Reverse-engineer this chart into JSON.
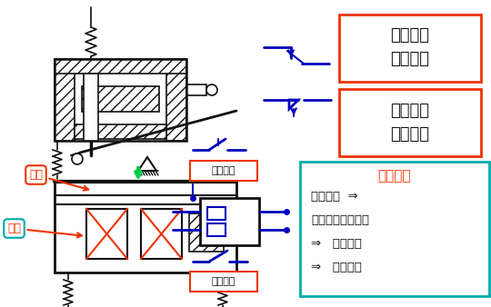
{
  "bg_color": "#ffffff",
  "blue": "#0000bb",
  "red_orange": "#ee3300",
  "teal": "#00aaaa",
  "dark": "#111111",
  "green": "#00cc44",
  "label_changkai": "常开触头\n延时闭合",
  "label_changbi": "常闭触头\n延时打开",
  "label_changbi2": "常闭触头",
  "label_changkai2": "常开触头",
  "label_dongzuo": "动作过程",
  "label_line1": "线圈通电  ⇒",
  "label_line2": "衔铁吸合（向下）",
  "label_line3": "⇒   连杆动作",
  "label_line4": "⇒   触头动作",
  "label_hengtie": "衔铁",
  "label_xianquan": "线圈"
}
